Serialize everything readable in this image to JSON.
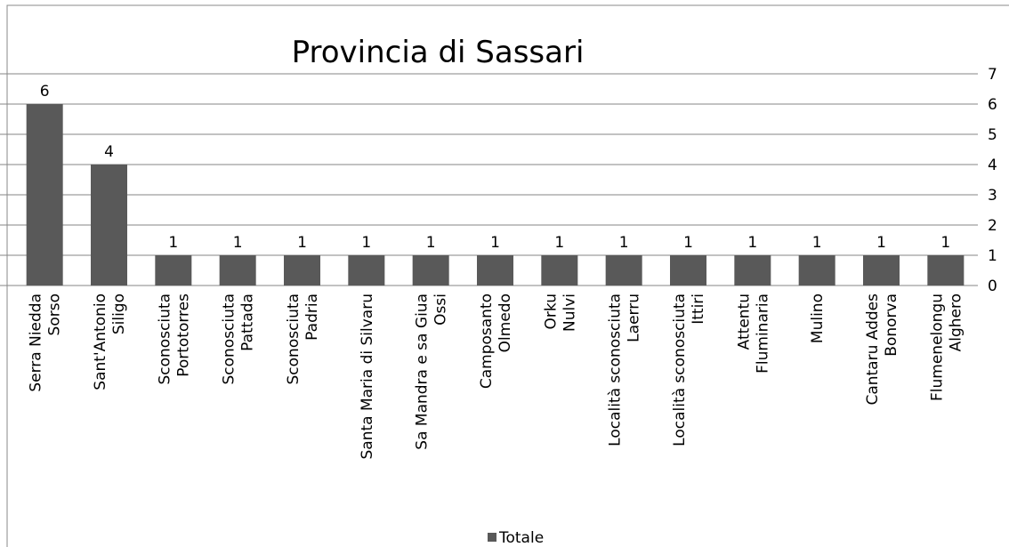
{
  "chart_data": {
    "type": "bar",
    "title": "Provincia di Sassari",
    "categories": [
      [
        "Serra Niedda",
        "Sorso"
      ],
      [
        "Sant'Antonio",
        "Siligo"
      ],
      [
        "Sconosciuta",
        "Portotorres"
      ],
      [
        "Sconosciuta",
        "Pattada"
      ],
      [
        "Sconosciuta",
        "Padria"
      ],
      [
        "Santa Maria di Silvaru"
      ],
      [
        "Sa Mandra e sa Giua",
        "Ossi"
      ],
      [
        "Camposanto",
        "Olmedo"
      ],
      [
        "Orku",
        "Nulvi"
      ],
      [
        "Località sconosciuta",
        "Laerru"
      ],
      [
        "Località sconosciuta",
        "Ittiri"
      ],
      [
        "Attentu",
        "Fluminaria"
      ],
      [
        "Mulino"
      ],
      [
        "Cantaru Addes",
        "Bonorva"
      ],
      [
        "Flumenelongu",
        "Alghero"
      ]
    ],
    "series": [
      {
        "name": "Totale",
        "color": "#595959",
        "values": [
          6,
          4,
          1,
          1,
          1,
          1,
          1,
          1,
          1,
          1,
          1,
          1,
          1,
          1,
          1
        ]
      }
    ],
    "ylim": [
      0,
      7
    ],
    "yticks": [
      0,
      1,
      2,
      3,
      4,
      5,
      6,
      7
    ],
    "grid": true,
    "legend": "bottom"
  }
}
